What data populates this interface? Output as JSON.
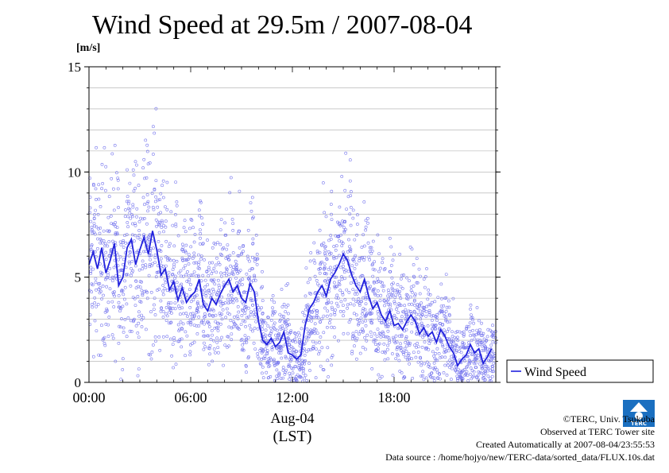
{
  "chart_data": {
    "type": "scatter",
    "title": "Wind Speed at 29.5m / 2007-08-04",
    "ylabel": "[m/s]",
    "ylim": [
      0,
      15
    ],
    "yticks": [
      "0",
      "5",
      "10",
      "15"
    ],
    "xlim": [
      "00:00",
      "24:00"
    ],
    "xticks": [
      "00:00",
      "06:00",
      "12:00",
      "18:00"
    ],
    "date_label": "Aug-04",
    "timezone_label": "(LST)",
    "legend": {
      "position": "right",
      "entries": [
        {
          "name": "Wind Speed",
          "color": "#2222dd"
        }
      ]
    },
    "grid": true,
    "series": [
      {
        "name": "Wind Speed",
        "style": "line-with-raw-scatter",
        "line_color": "#2222dd",
        "scatter_color": "#7777ee",
        "x_hours": [
          0.0,
          0.25,
          0.5,
          0.75,
          1.0,
          1.25,
          1.5,
          1.75,
          2.0,
          2.25,
          2.5,
          2.75,
          3.0,
          3.25,
          3.5,
          3.75,
          4.0,
          4.25,
          4.5,
          4.75,
          5.0,
          5.25,
          5.5,
          5.75,
          6.0,
          6.25,
          6.5,
          6.75,
          7.0,
          7.25,
          7.5,
          7.75,
          8.0,
          8.25,
          8.5,
          8.75,
          9.0,
          9.25,
          9.5,
          9.75,
          10.0,
          10.25,
          10.5,
          10.75,
          11.0,
          11.25,
          11.5,
          11.75,
          12.0,
          12.25,
          12.5,
          12.75,
          13.0,
          13.25,
          13.5,
          13.75,
          14.0,
          14.25,
          14.5,
          14.75,
          15.0,
          15.25,
          15.5,
          15.75,
          16.0,
          16.25,
          16.5,
          16.75,
          17.0,
          17.25,
          17.5,
          17.75,
          18.0,
          18.25,
          18.5,
          18.75,
          19.0,
          19.25,
          19.5,
          19.75,
          20.0,
          20.25,
          20.5,
          20.75,
          21.0,
          21.25,
          21.5,
          21.75,
          22.0,
          22.25,
          22.5,
          22.75,
          23.0,
          23.25,
          23.5,
          23.75
        ],
        "values": [
          5.6,
          6.2,
          5.4,
          6.4,
          5.2,
          5.8,
          6.6,
          4.6,
          5.0,
          6.4,
          6.8,
          5.6,
          6.3,
          6.9,
          6.1,
          7.2,
          6.3,
          5.1,
          5.4,
          4.4,
          4.8,
          3.9,
          4.5,
          3.8,
          4.1,
          4.3,
          4.9,
          3.7,
          3.4,
          4.0,
          3.7,
          4.2,
          4.6,
          4.9,
          4.3,
          4.6,
          4.0,
          3.8,
          4.7,
          4.3,
          2.9,
          2.0,
          1.8,
          2.1,
          1.7,
          1.9,
          2.4,
          1.4,
          1.3,
          1.1,
          1.3,
          2.7,
          3.5,
          3.8,
          4.3,
          4.6,
          4.1,
          4.9,
          5.2,
          5.6,
          6.1,
          5.8,
          5.1,
          4.6,
          4.3,
          4.9,
          4.1,
          3.5,
          3.8,
          3.2,
          2.9,
          3.4,
          2.7,
          2.8,
          2.5,
          2.9,
          3.2,
          2.9,
          2.3,
          2.6,
          2.2,
          2.4,
          1.9,
          2.5,
          2.2,
          1.7,
          1.4,
          0.8,
          1.1,
          1.3,
          1.8,
          1.4,
          1.6,
          0.9,
          1.2,
          1.6
        ]
      }
    ]
  },
  "footer": {
    "copyright": "©TERC, Univ. Tsukuba",
    "observed": "Observed at TERC Tower site",
    "created": "Created Automatically at 2007-08-04/23:55:53",
    "source": "Data source : /home/hojyo/new/TERC-data/sorted_data/FLUX.10s.dat"
  },
  "logo": {
    "text": "TERC",
    "color": "#1a6fc0"
  }
}
